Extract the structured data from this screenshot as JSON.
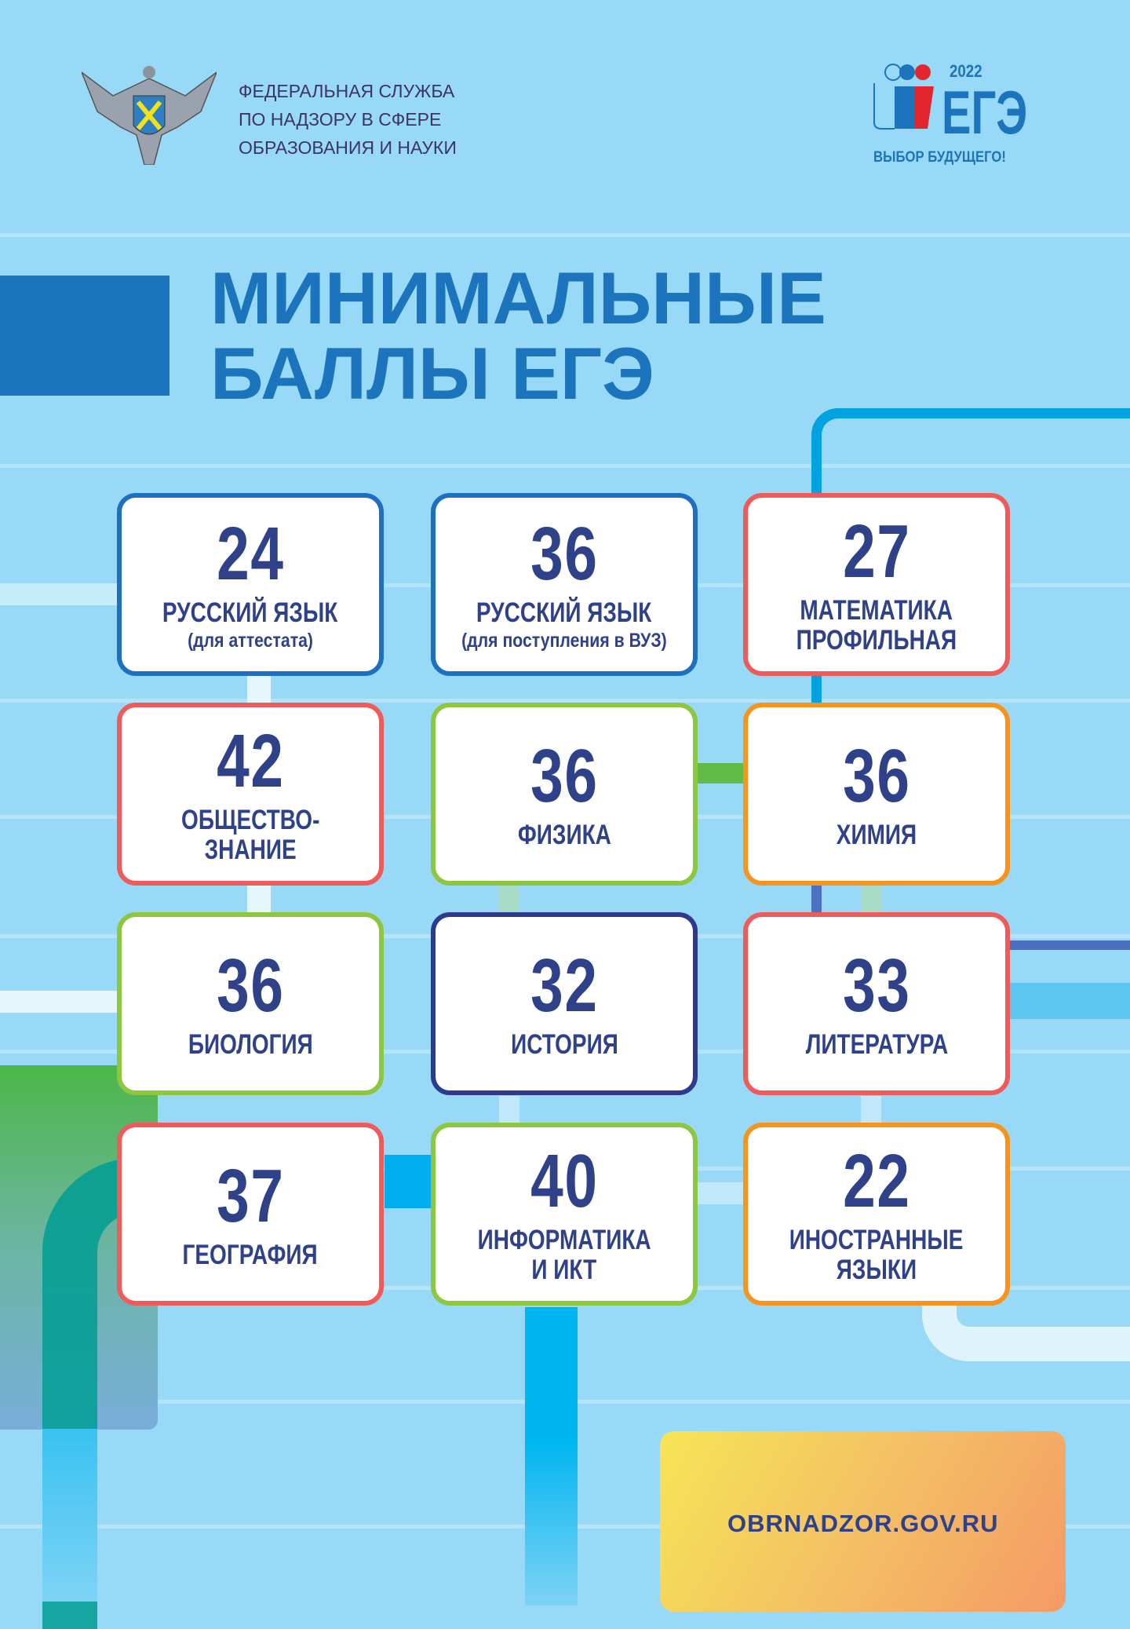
{
  "header": {
    "agency_lines": [
      "ФЕДЕРАЛЬНАЯ СЛУЖБА",
      "ПО НАДЗОРУ В СФЕРЕ",
      "ОБРАЗОВАНИЯ И НАУКИ"
    ],
    "emblem_icon": "double-headed-eagle-emblem",
    "ege_logo": {
      "year": "2022",
      "word": "ЕГЭ",
      "slogan": "ВЫБОР БУДУЩЕГО!"
    }
  },
  "title": {
    "line1": "МИНИМАЛЬНЫЕ",
    "line2": "БАЛЛЫ ЕГЭ"
  },
  "colors": {
    "background": "#98d9f7",
    "title": "#1c75bc",
    "text": "#2f4189",
    "blue": "#1f6fbf",
    "red": "#ef5a5a",
    "green": "#8dc63f",
    "orange": "#f7941d",
    "navy": "#2e3a8c"
  },
  "subjects": [
    {
      "score": "24",
      "name": [
        "РУССКИЙ ЯЗЫК"
      ],
      "note": "(для аттестата)",
      "color": "#1f6fbf"
    },
    {
      "score": "36",
      "name": [
        "РУССКИЙ ЯЗЫК"
      ],
      "note": "(для поступления в ВУЗ)",
      "color": "#1f6fbf"
    },
    {
      "score": "27",
      "name": [
        "МАТЕМАТИКА",
        "ПРОФИЛЬНАЯ"
      ],
      "color": "#ef5a5a"
    },
    {
      "score": "42",
      "name": [
        "ОБЩЕСТВО-",
        "ЗНАНИЕ"
      ],
      "color": "#ef5a5a"
    },
    {
      "score": "36",
      "name": [
        "ФИЗИКА"
      ],
      "color": "#8dc63f"
    },
    {
      "score": "36",
      "name": [
        "ХИМИЯ"
      ],
      "color": "#f7941d"
    },
    {
      "score": "36",
      "name": [
        "БИОЛОГИЯ"
      ],
      "color": "#8dc63f"
    },
    {
      "score": "32",
      "name": [
        "ИСТОРИЯ"
      ],
      "color": "#2e3a8c"
    },
    {
      "score": "33",
      "name": [
        "ЛИТЕРАТУРА"
      ],
      "color": "#ef5a5a"
    },
    {
      "score": "37",
      "name": [
        "ГЕОГРАФИЯ"
      ],
      "color": "#ef5a5a"
    },
    {
      "score": "40",
      "name": [
        "ИНФОРМАТИКА",
        "И ИКТ"
      ],
      "color": "#8dc63f"
    },
    {
      "score": "22",
      "name": [
        "ИНОСТРАННЫЕ",
        "ЯЗЫКИ"
      ],
      "color": "#f7941d"
    }
  ],
  "footer": {
    "website": "OBRNADZOR.GOV.RU"
  }
}
